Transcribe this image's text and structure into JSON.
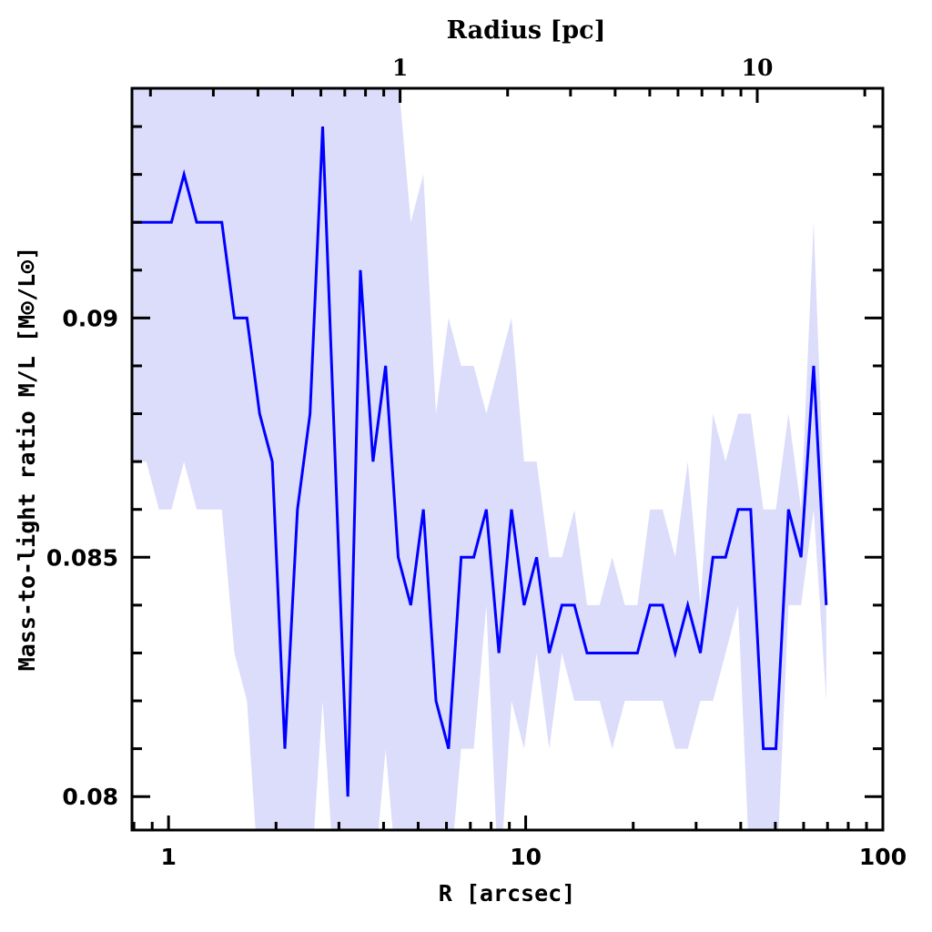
{
  "chart_data": {
    "type": "line",
    "xlabel": "R [arcsec]",
    "ylabel": "Mass-to-light ratio M/L [M⊙/L⊙]",
    "top_xlabel": "Radius [pc]",
    "xscale": "log",
    "xlim": [
      0.79,
      100
    ],
    "ylim": [
      0.0793,
      0.0948
    ],
    "arcsec_per_pc": 4.45,
    "x_ticks": [
      {
        "value": 1,
        "label": "1"
      },
      {
        "value": 10,
        "label": "10"
      },
      {
        "value": 100,
        "label": "100"
      }
    ],
    "top_ticks": [
      {
        "value": 1,
        "label": "1"
      },
      {
        "value": 10,
        "label": "10"
      }
    ],
    "y_ticks": [
      {
        "value": 0.08,
        "label": "0.08"
      },
      {
        "value": 0.085,
        "label": "0.085"
      },
      {
        "value": 0.09,
        "label": "0.09"
      }
    ],
    "grid": false,
    "legend": "none",
    "colors": {
      "line": "#0000ff",
      "band": "#dcdcfb"
    },
    "x": [
      0.799,
      0.867,
      0.94,
      1.019,
      1.105,
      1.199,
      1.3,
      1.41,
      1.529,
      1.658,
      1.799,
      1.952,
      2.117,
      2.296,
      2.49,
      2.701,
      2.929,
      3.177,
      3.445,
      3.737,
      4.053,
      4.396,
      4.767,
      5.17,
      5.608,
      6.082,
      6.596,
      7.154,
      7.759,
      8.415,
      9.126,
      9.897,
      10.73,
      11.64,
      12.63,
      13.69,
      14.85,
      16.11,
      17.47,
      18.95,
      20.55,
      22.29,
      24.17,
      26.22,
      28.43,
      30.84,
      33.44,
      36.27,
      39.34,
      42.66,
      46.27,
      50.18,
      54.42,
      59.02,
      64.01,
      69.43
    ],
    "series": [
      {
        "name": "M/L",
        "values": [
          0.092,
          0.092,
          0.092,
          0.092,
          0.093,
          0.092,
          0.092,
          0.092,
          0.09,
          0.09,
          0.088,
          0.087,
          0.081,
          0.086,
          0.088,
          0.094,
          0.087,
          0.08,
          0.091,
          0.087,
          0.089,
          0.085,
          0.084,
          0.086,
          0.082,
          0.081,
          0.085,
          0.085,
          0.086,
          0.083,
          0.086,
          0.084,
          0.085,
          0.083,
          0.084,
          0.084,
          0.083,
          0.083,
          0.083,
          0.083,
          0.083,
          0.084,
          0.084,
          0.083,
          0.084,
          0.083,
          0.085,
          0.085,
          0.086,
          0.086,
          0.081,
          0.081,
          0.086,
          0.085,
          0.089,
          0.084
        ]
      },
      {
        "name": "upper",
        "values": [
          0.096,
          0.096,
          0.096,
          0.096,
          0.096,
          0.096,
          0.096,
          0.096,
          0.096,
          0.096,
          0.096,
          0.096,
          0.096,
          0.096,
          0.096,
          0.096,
          0.096,
          0.096,
          0.096,
          0.096,
          0.096,
          0.095,
          0.092,
          0.093,
          0.088,
          0.09,
          0.089,
          0.089,
          0.088,
          0.089,
          0.09,
          0.087,
          0.087,
          0.085,
          0.085,
          0.086,
          0.084,
          0.084,
          0.085,
          0.084,
          0.084,
          0.086,
          0.086,
          0.085,
          0.087,
          0.084,
          0.088,
          0.087,
          0.088,
          0.088,
          0.086,
          0.086,
          0.088,
          0.086,
          0.092,
          0.085
        ]
      },
      {
        "name": "lower",
        "values": [
          0.087,
          0.087,
          0.086,
          0.086,
          0.087,
          0.086,
          0.086,
          0.086,
          0.083,
          0.082,
          0.078,
          0.078,
          0.078,
          0.078,
          0.078,
          0.082,
          0.078,
          0.078,
          0.078,
          0.078,
          0.081,
          0.078,
          0.078,
          0.078,
          0.078,
          0.078,
          0.081,
          0.081,
          0.084,
          0.078,
          0.082,
          0.081,
          0.083,
          0.081,
          0.083,
          0.082,
          0.082,
          0.082,
          0.081,
          0.082,
          0.082,
          0.082,
          0.082,
          0.081,
          0.081,
          0.082,
          0.082,
          0.083,
          0.084,
          0.078,
          0.078,
          0.078,
          0.084,
          0.084,
          0.086,
          0.082
        ]
      }
    ]
  }
}
